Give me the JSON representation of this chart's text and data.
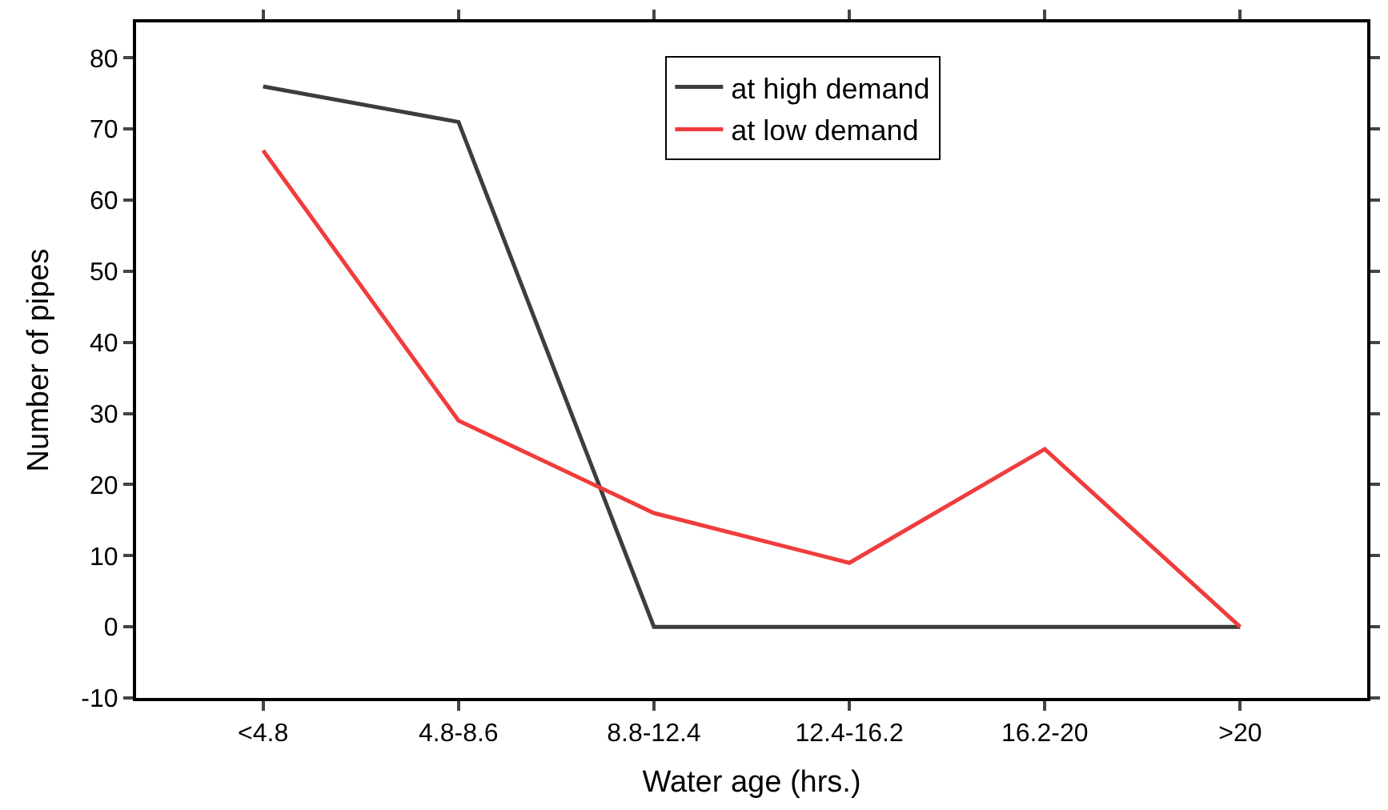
{
  "chart_data": {
    "type": "line",
    "xlabel": "Water age (hrs.)",
    "ylabel": "Number of pipes",
    "categories": [
      "<4.8",
      "4.8-8.6",
      "8.8-12.4",
      "12.4-16.2",
      "16.2-20",
      ">20"
    ],
    "series": [
      {
        "name": "at high demand",
        "color": "#3d3d3d",
        "values": [
          76,
          71,
          0,
          0,
          0,
          0
        ]
      },
      {
        "name": "at low demand",
        "color": "#f03c3c",
        "values": [
          67,
          29,
          16,
          9,
          25,
          0
        ]
      }
    ],
    "ylim": [
      -10,
      85
    ],
    "yticks": [
      -10,
      0,
      10,
      20,
      30,
      40,
      50,
      60,
      70,
      80
    ],
    "legend": "top right",
    "marker": "none",
    "line_style": "solid"
  }
}
